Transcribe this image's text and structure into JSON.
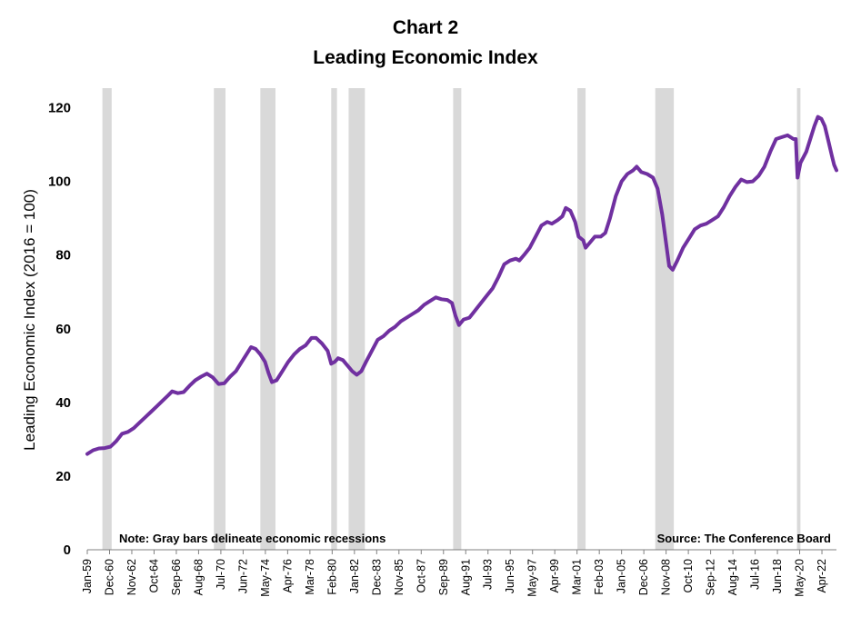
{
  "chart_data": {
    "type": "line",
    "title": "Chart 2",
    "subtitle": "Leading Economic Index",
    "xlabel": "",
    "ylabel": "Leading Economic Index (2016 = 100)",
    "ylim": [
      0,
      120
    ],
    "yticks": [
      0,
      20,
      40,
      60,
      80,
      100,
      120
    ],
    "x_start": 1959.0,
    "x_end": 2023.5,
    "x_ticks": [
      {
        "label": "Jan-59",
        "year": 1959.0
      },
      {
        "label": "Dec-60",
        "year": 1960.917
      },
      {
        "label": "Nov-62",
        "year": 1962.833
      },
      {
        "label": "Oct-64",
        "year": 1964.75
      },
      {
        "label": "Sep-66",
        "year": 1966.667
      },
      {
        "label": "Aug-68",
        "year": 1968.583
      },
      {
        "label": "Jul-70",
        "year": 1970.5
      },
      {
        "label": "Jun-72",
        "year": 1972.417
      },
      {
        "label": "May-74",
        "year": 1974.333
      },
      {
        "label": "Apr-76",
        "year": 1976.25
      },
      {
        "label": "Mar-78",
        "year": 1978.167
      },
      {
        "label": "Feb-80",
        "year": 1980.083
      },
      {
        "label": "Jan-82",
        "year": 1982.0
      },
      {
        "label": "Dec-83",
        "year": 1983.917
      },
      {
        "label": "Nov-85",
        "year": 1985.833
      },
      {
        "label": "Oct-87",
        "year": 1987.75
      },
      {
        "label": "Sep-89",
        "year": 1989.667
      },
      {
        "label": "Aug-91",
        "year": 1991.583
      },
      {
        "label": "Jul-93",
        "year": 1993.5
      },
      {
        "label": "Jun-95",
        "year": 1995.417
      },
      {
        "label": "May-97",
        "year": 1997.333
      },
      {
        "label": "Apr-99",
        "year": 1999.25
      },
      {
        "label": "Mar-01",
        "year": 2001.167
      },
      {
        "label": "Feb-03",
        "year": 2003.083
      },
      {
        "label": "Jan-05",
        "year": 2005.0
      },
      {
        "label": "Dec-06",
        "year": 2006.917
      },
      {
        "label": "Nov-08",
        "year": 2008.833
      },
      {
        "label": "Oct-10",
        "year": 2010.75
      },
      {
        "label": "Sep-12",
        "year": 2012.667
      },
      {
        "label": "Aug-14",
        "year": 2014.583
      },
      {
        "label": "Jul-16",
        "year": 2016.5
      },
      {
        "label": "Jun-18",
        "year": 2018.417
      },
      {
        "label": "May-20",
        "year": 2020.333
      },
      {
        "label": "Apr-22",
        "year": 2022.25
      }
    ],
    "recessions": [
      {
        "start": 1960.3,
        "end": 1961.1
      },
      {
        "start": 1969.9,
        "end": 1970.9
      },
      {
        "start": 1973.9,
        "end": 1975.2
      },
      {
        "start": 1980.0,
        "end": 1980.5
      },
      {
        "start": 1981.5,
        "end": 1982.9
      },
      {
        "start": 1990.5,
        "end": 1991.2
      },
      {
        "start": 2001.2,
        "end": 2001.9
      },
      {
        "start": 2007.9,
        "end": 2009.5
      },
      {
        "start": 2020.1,
        "end": 2020.4
      }
    ],
    "series": [
      {
        "name": "Leading Economic Index",
        "color": "#7030a0",
        "points": [
          [
            1959.0,
            26
          ],
          [
            1959.5,
            27
          ],
          [
            1960.0,
            27.5
          ],
          [
            1960.5,
            27.6
          ],
          [
            1961.0,
            28
          ],
          [
            1961.5,
            29.5
          ],
          [
            1962.0,
            31.5
          ],
          [
            1962.5,
            32
          ],
          [
            1963.0,
            33
          ],
          [
            1963.5,
            34.5
          ],
          [
            1964.0,
            36
          ],
          [
            1964.5,
            37.5
          ],
          [
            1965.0,
            39
          ],
          [
            1965.5,
            40.5
          ],
          [
            1966.0,
            42
          ],
          [
            1966.3,
            43
          ],
          [
            1966.8,
            42.5
          ],
          [
            1967.3,
            42.8
          ],
          [
            1967.8,
            44.5
          ],
          [
            1968.3,
            46
          ],
          [
            1968.8,
            47
          ],
          [
            1969.3,
            47.8
          ],
          [
            1969.8,
            46.8
          ],
          [
            1970.3,
            45
          ],
          [
            1970.8,
            45.2
          ],
          [
            1971.3,
            47
          ],
          [
            1971.8,
            48.5
          ],
          [
            1972.3,
            51
          ],
          [
            1972.8,
            53.5
          ],
          [
            1973.1,
            55
          ],
          [
            1973.5,
            54.5
          ],
          [
            1973.9,
            53
          ],
          [
            1974.3,
            51
          ],
          [
            1974.6,
            48
          ],
          [
            1974.9,
            45.5
          ],
          [
            1975.3,
            46
          ],
          [
            1975.8,
            48.5
          ],
          [
            1976.3,
            51
          ],
          [
            1976.8,
            53
          ],
          [
            1977.3,
            54.5
          ],
          [
            1977.8,
            55.5
          ],
          [
            1978.3,
            57.5
          ],
          [
            1978.7,
            57.5
          ],
          [
            1979.2,
            56
          ],
          [
            1979.7,
            54
          ],
          [
            1980.0,
            50.5
          ],
          [
            1980.3,
            51
          ],
          [
            1980.6,
            52
          ],
          [
            1981.0,
            51.5
          ],
          [
            1981.4,
            50
          ],
          [
            1981.8,
            48.5
          ],
          [
            1982.2,
            47.5
          ],
          [
            1982.6,
            48.5
          ],
          [
            1983.0,
            51
          ],
          [
            1983.5,
            54
          ],
          [
            1984.0,
            57
          ],
          [
            1984.5,
            58
          ],
          [
            1985.0,
            59.5
          ],
          [
            1985.5,
            60.5
          ],
          [
            1986.0,
            62
          ],
          [
            1986.5,
            63
          ],
          [
            1987.0,
            64
          ],
          [
            1987.5,
            65
          ],
          [
            1988.0,
            66.5
          ],
          [
            1988.5,
            67.5
          ],
          [
            1989.0,
            68.5
          ],
          [
            1989.5,
            68
          ],
          [
            1990.0,
            67.8
          ],
          [
            1990.4,
            67
          ],
          [
            1990.7,
            63.5
          ],
          [
            1991.0,
            61
          ],
          [
            1991.4,
            62.5
          ],
          [
            1991.9,
            63
          ],
          [
            1992.4,
            65
          ],
          [
            1992.9,
            67
          ],
          [
            1993.4,
            69
          ],
          [
            1993.9,
            71
          ],
          [
            1994.4,
            74
          ],
          [
            1994.9,
            77.5
          ],
          [
            1995.4,
            78.5
          ],
          [
            1995.9,
            79
          ],
          [
            1996.2,
            78.5
          ],
          [
            1996.6,
            80
          ],
          [
            1997.1,
            82
          ],
          [
            1997.6,
            85
          ],
          [
            1998.1,
            88
          ],
          [
            1998.6,
            89
          ],
          [
            1999.0,
            88.5
          ],
          [
            1999.5,
            89.5
          ],
          [
            1999.9,
            90.5
          ],
          [
            2000.2,
            92.8
          ],
          [
            2000.6,
            92
          ],
          [
            2001.0,
            89
          ],
          [
            2001.3,
            85
          ],
          [
            2001.7,
            84
          ],
          [
            2001.9,
            82
          ],
          [
            2002.3,
            83.5
          ],
          [
            2002.7,
            85
          ],
          [
            2003.2,
            85
          ],
          [
            2003.6,
            86
          ],
          [
            2004.0,
            90
          ],
          [
            2004.5,
            96
          ],
          [
            2005.0,
            100
          ],
          [
            2005.5,
            102
          ],
          [
            2006.0,
            103
          ],
          [
            2006.3,
            104
          ],
          [
            2006.7,
            102.5
          ],
          [
            2007.2,
            102
          ],
          [
            2007.7,
            101
          ],
          [
            2008.1,
            98
          ],
          [
            2008.5,
            91
          ],
          [
            2008.8,
            84
          ],
          [
            2009.1,
            77
          ],
          [
            2009.4,
            76
          ],
          [
            2009.8,
            78.5
          ],
          [
            2010.3,
            82
          ],
          [
            2010.8,
            84.5
          ],
          [
            2011.3,
            87
          ],
          [
            2011.8,
            88
          ],
          [
            2012.3,
            88.5
          ],
          [
            2012.8,
            89.5
          ],
          [
            2013.3,
            90.5
          ],
          [
            2013.8,
            93
          ],
          [
            2014.3,
            96
          ],
          [
            2014.8,
            98.5
          ],
          [
            2015.3,
            100.5
          ],
          [
            2015.8,
            99.8
          ],
          [
            2016.3,
            100
          ],
          [
            2016.8,
            101.5
          ],
          [
            2017.3,
            104
          ],
          [
            2017.8,
            108
          ],
          [
            2018.3,
            111.5
          ],
          [
            2018.8,
            112
          ],
          [
            2019.3,
            112.5
          ],
          [
            2019.8,
            111.5
          ],
          [
            2020.0,
            111.5
          ],
          [
            2020.15,
            101
          ],
          [
            2020.4,
            105
          ],
          [
            2020.9,
            108
          ],
          [
            2021.3,
            112
          ],
          [
            2021.6,
            115
          ],
          [
            2021.9,
            117.5
          ],
          [
            2022.2,
            117
          ],
          [
            2022.5,
            115
          ],
          [
            2022.8,
            111
          ],
          [
            2023.1,
            107
          ],
          [
            2023.3,
            104.5
          ],
          [
            2023.5,
            103
          ]
        ]
      }
    ],
    "annotations": {
      "note": "Note: Gray bars delineate economic recessions",
      "source": "Source: The Conference Board"
    }
  },
  "colors": {
    "line": "#7030a0",
    "recession": "#d9d9d9",
    "axis": "#808080"
  }
}
